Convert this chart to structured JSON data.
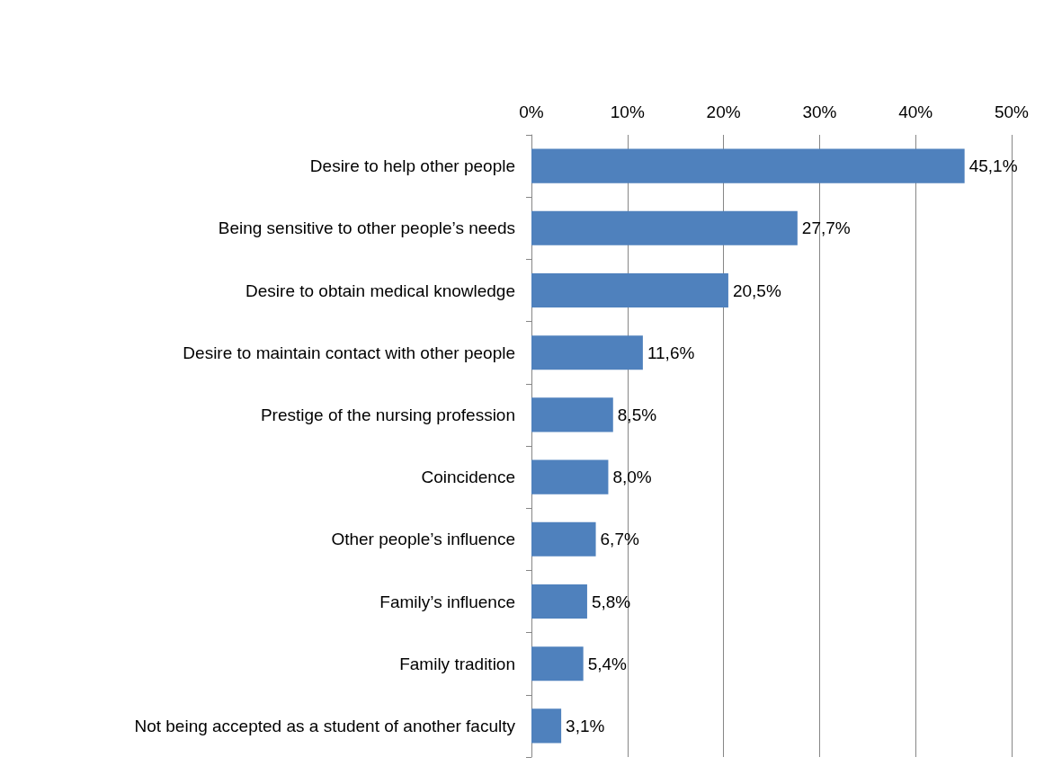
{
  "chart_data": {
    "type": "bar",
    "orientation": "horizontal",
    "categories": [
      "Desire to help other people",
      "Being sensitive to other people’s needs",
      "Desire to obtain medical knowledge",
      "Desire to maintain contact with other people",
      "Prestige of the nursing profession",
      "Coincidence",
      "Other people’s influence",
      "Family’s influence",
      "Family tradition",
      "Not being accepted as a student of another faculty"
    ],
    "values": [
      45.1,
      27.7,
      20.5,
      11.6,
      8.5,
      8.0,
      6.7,
      5.8,
      5.4,
      3.1
    ],
    "value_labels": [
      "45,1%",
      "27,7%",
      "20,5%",
      "11,6%",
      "8,5%",
      "8,0%",
      "6,7%",
      "5,8%",
      "5,4%",
      "3,1%"
    ],
    "color": "#4f81bd",
    "xlim": [
      0,
      50
    ],
    "xticks": [
      {
        "value": 0,
        "label": "0%"
      },
      {
        "value": 10,
        "label": "10%"
      },
      {
        "value": 20,
        "label": "20%"
      },
      {
        "value": 30,
        "label": "30%"
      },
      {
        "value": 40,
        "label": "40%"
      },
      {
        "value": 50,
        "label": "50%"
      }
    ],
    "grid": "x"
  }
}
